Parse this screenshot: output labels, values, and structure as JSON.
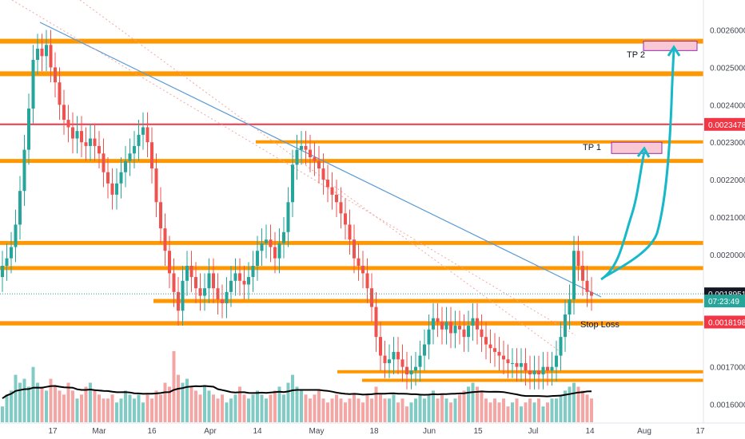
{
  "chart_data": {
    "type": "candlestick",
    "instrument": "",
    "x_ticks": [
      "17",
      "Mar",
      "16",
      "Apr",
      "14",
      "May",
      "18",
      "Jun",
      "15",
      "Jul",
      "14",
      "Aug",
      "17"
    ],
    "y_ticks": [
      "0.0026000",
      "0.0025000",
      "0.0024000",
      "0.0023000",
      "0.0022000",
      "0.0021000",
      "0.0020000",
      "0.0017000",
      "0.0016000"
    ],
    "ylim": [
      0.00155,
      0.00268
    ],
    "grid": false,
    "price_labels": [
      {
        "text": "0.0023478",
        "value": 0.0023478,
        "color": "#f23645"
      },
      {
        "text": "0.0018951",
        "value": 0.0018951,
        "color": "#131722"
      },
      {
        "text": "07:23:49",
        "value": 0.001876,
        "color": "#26a69a"
      },
      {
        "text": "0.0018198",
        "value": 0.0018198,
        "color": "#f23645"
      }
    ],
    "levels": [
      {
        "value": 0.00257,
        "color": "#ff9800",
        "width": 6
      },
      {
        "value": 0.002483,
        "color": "#ff9800",
        "width": 6
      },
      {
        "value": 0.0023478,
        "color": "#f23645",
        "width": 2
      },
      {
        "value": 0.002301,
        "color": "#ff9800",
        "width": 4
      },
      {
        "value": 0.00225,
        "color": "#ff9800",
        "width": 5
      },
      {
        "value": 0.002031,
        "color": "#ff9800",
        "width": 5
      },
      {
        "value": 0.001964,
        "color": "#ff9800",
        "width": 5
      },
      {
        "value": 0.001876,
        "color": "#ff9800",
        "width": 5
      },
      {
        "value": 0.0018198,
        "color": "#f23645",
        "width": 2
      },
      {
        "value": 0.001816,
        "color": "#ff9800",
        "width": 5
      },
      {
        "value": 0.001687,
        "color": "#ff9800",
        "width": 4
      },
      {
        "value": 0.001664,
        "color": "#ff9800",
        "width": 4
      }
    ],
    "targets": [
      {
        "label": "TP 1",
        "low": 0.00227,
        "high": 0.0023
      },
      {
        "label": "TP 2",
        "low": 0.002545,
        "high": 0.00257
      }
    ],
    "annotations": [
      {
        "text": "TP 2"
      },
      {
        "text": "TP 1"
      },
      {
        "text": "Stop Loss"
      }
    ],
    "series": [
      {
        "close": [
          0.00197,
          0.00199,
          0.00202,
          0.00208,
          0.00217,
          0.00228,
          0.00239,
          0.00252,
          0.00255,
          0.00253,
          0.00256,
          0.0025,
          0.00246,
          0.0024,
          0.00236,
          0.00234,
          0.00231,
          0.00233,
          0.0023,
          0.00229,
          0.00231,
          0.00229,
          0.00227,
          0.00222,
          0.00219,
          0.00216,
          0.00219,
          0.00222,
          0.00225,
          0.00227,
          0.00229,
          0.00232,
          0.00234,
          0.0023,
          0.00223,
          0.00214,
          0.00207,
          0.00201,
          0.00195,
          0.0019,
          0.00185,
          0.00193,
          0.00197,
          0.00194,
          0.00191,
          0.00189,
          0.00191,
          0.00195,
          0.00191,
          0.00188,
          0.00187,
          0.0019,
          0.00193,
          0.00195,
          0.00193,
          0.00192,
          0.00194,
          0.00197,
          0.00201,
          0.00203,
          0.00204,
          0.00202,
          0.00199,
          0.00203,
          0.00206,
          0.00214,
          0.00224,
          0.00228,
          0.00229,
          0.00228,
          0.00226,
          0.00225,
          0.00223,
          0.0022,
          0.00218,
          0.00216,
          0.00214,
          0.00211,
          0.00208,
          0.00204,
          0.00199,
          0.00197,
          0.00195,
          0.00191,
          0.00186,
          0.00178,
          0.00173,
          0.00171,
          0.00172,
          0.00174,
          0.00172,
          0.0017,
          0.00168,
          0.00169,
          0.0017,
          0.00173,
          0.00176,
          0.0018,
          0.00183,
          0.00182,
          0.0018,
          0.00182,
          0.00179,
          0.00181,
          0.0018,
          0.00178,
          0.00181,
          0.00183,
          0.0018,
          0.00178,
          0.00176,
          0.00175,
          0.00174,
          0.00173,
          0.00172,
          0.00171,
          0.00171,
          0.0017,
          0.00171,
          0.00169,
          0.00168,
          0.00169,
          0.00168,
          0.0017,
          0.00169,
          0.0017,
          0.00173,
          0.00178,
          0.00184,
          0.00188,
          0.00201,
          0.00197,
          0.00193,
          0.0019,
          0.00189
        ]
      },
      {
        "volume": [
          0.2,
          0.35,
          0.4,
          0.6,
          0.5,
          0.55,
          0.45,
          0.7,
          0.5,
          0.45,
          0.4,
          0.55,
          0.45,
          0.4,
          0.35,
          0.5,
          0.4,
          0.3,
          0.35,
          0.45,
          0.5,
          0.4,
          0.35,
          0.3,
          0.3,
          0.35,
          0.25,
          0.3,
          0.4,
          0.35,
          0.3,
          0.35,
          0.25,
          0.35,
          0.3,
          0.4,
          0.35,
          0.5,
          0.45,
          0.9,
          0.6,
          0.5,
          0.55,
          0.45,
          0.4,
          0.35,
          0.45,
          0.4,
          0.35,
          0.3,
          0.35,
          0.25,
          0.3,
          0.35,
          0.45,
          0.35,
          0.3,
          0.35,
          0.4,
          0.35,
          0.3,
          0.35,
          0.4,
          0.45,
          0.35,
          0.5,
          0.6,
          0.45,
          0.4,
          0.35,
          0.3,
          0.35,
          0.4,
          0.3,
          0.25,
          0.3,
          0.35,
          0.3,
          0.25,
          0.3,
          0.35,
          0.3,
          0.25,
          0.35,
          0.3,
          0.45,
          0.35,
          0.3,
          0.3,
          0.35,
          0.25,
          0.3,
          0.2,
          0.25,
          0.3,
          0.35,
          0.3,
          0.35,
          0.4,
          0.3,
          0.35,
          0.3,
          0.25,
          0.3,
          0.35,
          0.4,
          0.45,
          0.5,
          0.45,
          0.4,
          0.3,
          0.25,
          0.3,
          0.25,
          0.3,
          0.2,
          0.25,
          0.3,
          0.2,
          0.25,
          0.3,
          0.25,
          0.3,
          0.2,
          0.25,
          0.3,
          0.3,
          0.35,
          0.4,
          0.45,
          0.5,
          0.45,
          0.4,
          0.35,
          0.3
        ]
      }
    ],
    "colors": {
      "up": "#26a69a",
      "down": "#ef5350",
      "level": "#ff9800",
      "stop": "#f23645",
      "trend": "#5b9bd5",
      "arrow": "#17b8c8",
      "target": "#f8c8d4",
      "target_border": "#9c27b0"
    }
  }
}
